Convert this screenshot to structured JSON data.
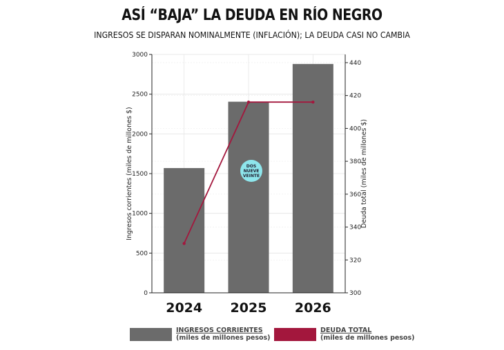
{
  "chart_data": {
    "type": "bar",
    "title": "ASÍ “BAJA” LA DEUDA EN RÍO NEGRO",
    "subtitle": "INGRESOS SE DISPARAN NOMINALMENTE (INFLACIÓN); LA DEUDA CASI NO CAMBIA",
    "categories": [
      "2024",
      "2025",
      "2026"
    ],
    "series": [
      {
        "name": "INGRESOS CORRIENTES",
        "unit": "(miles de millones pesos)",
        "type": "bar",
        "axis": "left",
        "color": "#6b6b6b",
        "values": [
          1570,
          2405,
          2880
        ]
      },
      {
        "name": "DEUDA TOTAL",
        "unit": "(miles de millones pesos)",
        "type": "line",
        "axis": "right",
        "color": "#a3173d",
        "values": [
          330,
          416,
          416
        ]
      }
    ],
    "ylabel_left": "Ingresos corrientes (miles de millones $)",
    "ylabel_right": "Deuda total (miles de millones $)",
    "ylim_left": [
      0,
      3000
    ],
    "ylim_right": [
      300,
      445
    ],
    "yticks_left": [
      "0",
      "500",
      "1000",
      "1500",
      "2000",
      "2500",
      "3000"
    ],
    "yticks_right": [
      "300",
      "320",
      "340",
      "360",
      "380",
      "400",
      "420",
      "440"
    ],
    "grid": true,
    "legend": "bottom"
  },
  "watermark": {
    "line1": "DOS",
    "line2": "NUEVE",
    "line3": "VEINTE"
  }
}
